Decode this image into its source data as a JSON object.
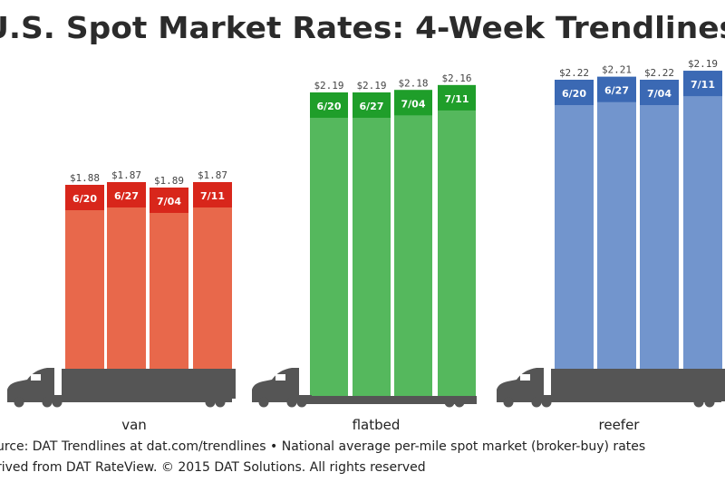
{
  "chart_data": {
    "type": "bar",
    "title": "U.S. Spot Market Rates: 4-Week Trendlines",
    "categories": [
      "6/20",
      "6/27",
      "7/04",
      "7/11"
    ],
    "series": [
      {
        "name": "van",
        "values": [
          1.88,
          1.87,
          1.89,
          1.87
        ],
        "labels": [
          "$1.88",
          "$1.87",
          "$1.89",
          "$1.87"
        ],
        "bar_color": "#e8684b",
        "header_color": "#d8261b"
      },
      {
        "name": "flatbed",
        "values": [
          2.19,
          2.19,
          2.18,
          2.16
        ],
        "labels": [
          "$2.19",
          "$2.19",
          "$2.18",
          "$2.16"
        ],
        "bar_color": "#55b85d",
        "header_color": "#1f9e2a"
      },
      {
        "name": "reefer",
        "values": [
          2.22,
          2.21,
          2.22,
          2.19
        ],
        "labels": [
          "$2.22",
          "$2.21",
          "$2.22",
          "$2.19"
        ],
        "bar_color": "#7295cd",
        "header_color": "#3b69b4"
      }
    ],
    "truck_color": "#555555"
  },
  "footer": {
    "line1": "urce: DAT Trendlines at dat.com/trendlines • National average per-mile spot market (broker-buy) rates",
    "line2": "rived from DAT RateView. © 2015 DAT Solutions. All rights reserved"
  }
}
